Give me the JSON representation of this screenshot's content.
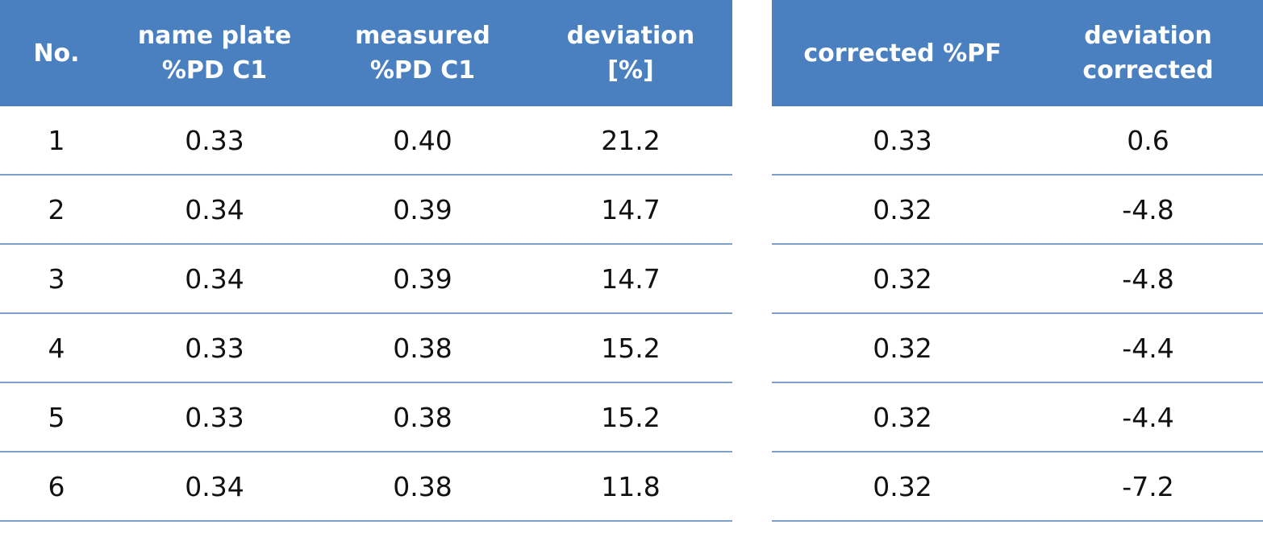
{
  "left_table": {
    "headers": [
      [
        "No."
      ],
      [
        "name plate",
        "%PD C1"
      ],
      [
        "measured",
        "%PD C1"
      ],
      [
        "deviation",
        "[%]"
      ]
    ],
    "rows": [
      [
        "1",
        "0.33",
        "0.40",
        "21.2"
      ],
      [
        "2",
        "0.34",
        "0.39",
        "14.7"
      ],
      [
        "3",
        "0.34",
        "0.39",
        "14.7"
      ],
      [
        "4",
        "0.33",
        "0.38",
        "15.2"
      ],
      [
        "5",
        "0.33",
        "0.38",
        "15.2"
      ],
      [
        "6",
        "0.34",
        "0.38",
        "11.8"
      ]
    ]
  },
  "right_table": {
    "headers": [
      [
        "corrected %PF"
      ],
      [
        "deviation",
        "corrected"
      ]
    ],
    "rows": [
      [
        "0.33",
        "0.6"
      ],
      [
        "0.32",
        "-4.8"
      ],
      [
        "0.32",
        "-4.8"
      ],
      [
        "0.32",
        "-4.4"
      ],
      [
        "0.32",
        "-4.4"
      ],
      [
        "0.32",
        "-7.2"
      ]
    ]
  },
  "colors": {
    "header_bg": "#4a80c0",
    "header_text": "#ffffff",
    "row_divider": "#7e9fc8"
  }
}
